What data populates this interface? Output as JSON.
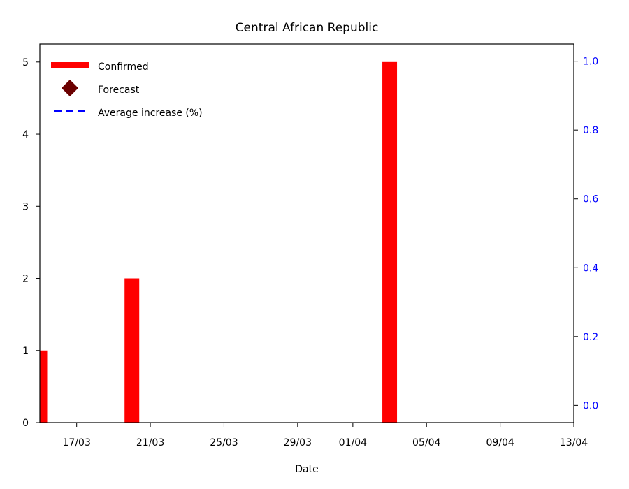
{
  "chart_data": {
    "type": "bar",
    "title": "Central African Republic",
    "xlabel": "Date",
    "ylabel": "",
    "y2label": "",
    "x_axis": {
      "start_date": "2020-03-15",
      "end_date": "2020-04-13",
      "ticks": [
        "17/03",
        "21/03",
        "25/03",
        "29/03",
        "01/04",
        "05/04",
        "09/04",
        "13/04"
      ]
    },
    "y_left": {
      "range": [
        0,
        5.25
      ],
      "ticks": [
        "0",
        "1",
        "2",
        "3",
        "4",
        "5"
      ]
    },
    "y_right": {
      "range": [
        -0.05,
        1.05
      ],
      "ticks": [
        "0.0",
        "0.2",
        "0.4",
        "0.6",
        "0.8",
        "1.0"
      ],
      "color": "#0000ff"
    },
    "series": [
      {
        "name": "Confirmed",
        "kind": "bar",
        "color": "#ff0000",
        "points": [
          {
            "date": "2020-03-15",
            "value": 1
          },
          {
            "date": "2020-03-20",
            "value": 2
          },
          {
            "date": "2020-04-03",
            "value": 5
          }
        ]
      },
      {
        "name": "Forecast",
        "kind": "marker",
        "marker": "diamond",
        "color": "#6b0000",
        "points": []
      },
      {
        "name": "Average increase (%)",
        "kind": "line",
        "style": "dashed",
        "color": "#0000ff",
        "points": [],
        "axis": "right"
      }
    ],
    "legend": {
      "position": "top-left",
      "entries": [
        "Confirmed",
        "Forecast",
        "Average increase (%)"
      ]
    },
    "grid": false
  }
}
